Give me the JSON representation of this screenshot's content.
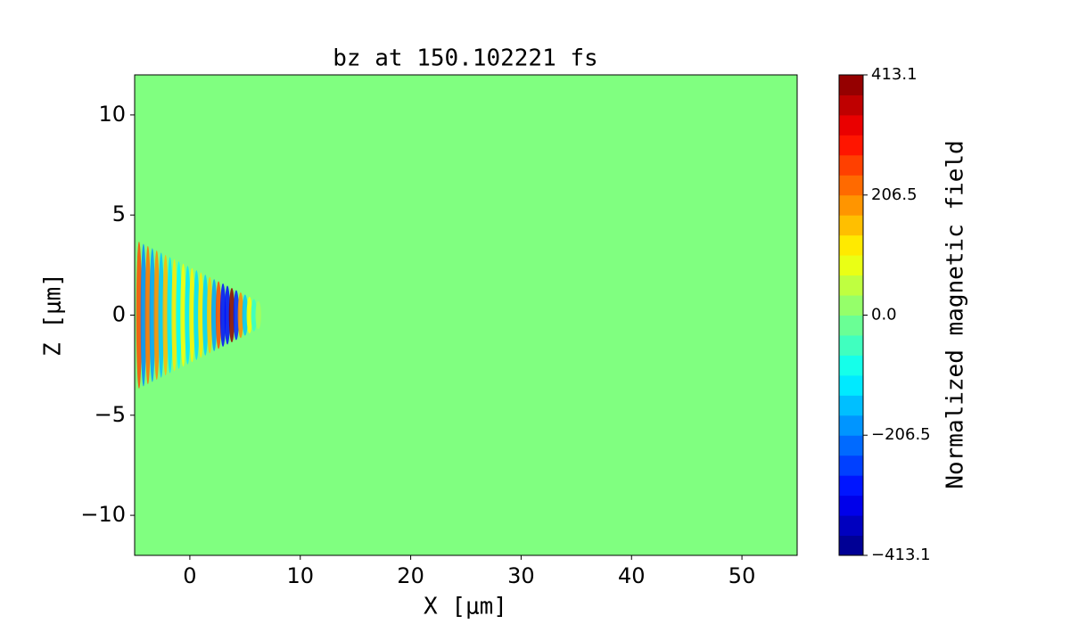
{
  "chart_data": {
    "type": "heatmap",
    "title": "bz at 150.102221 fs",
    "x_label": "X [μm]",
    "y_label": "Z [μm]",
    "colorbar_label": "Normalized magnetic field",
    "xlim": [
      -5,
      55
    ],
    "ylim": [
      -12,
      12
    ],
    "xticks": [
      0,
      10,
      20,
      30,
      40,
      50
    ],
    "yticks": [
      {
        "value": -10,
        "label": "−10"
      },
      {
        "value": -5,
        "label": "−5"
      },
      0,
      5,
      10
    ],
    "clim": [
      -413.1,
      413.1
    ],
    "cticks": [
      {
        "value": -413.1,
        "label": "−413.1"
      },
      {
        "value": -206.5,
        "label": "−206.5"
      },
      {
        "value": 0,
        "label": "0.0"
      },
      206.5,
      413.1
    ],
    "colormap": "jet",
    "background_value": 0,
    "x": [
      -4.6,
      -4.2,
      -3.8,
      -3.4,
      -3.0,
      -2.6,
      -2.2,
      -1.8,
      -1.4,
      -1.0,
      -0.6,
      -0.2,
      0.2,
      0.6,
      1.0,
      1.4,
      1.8,
      2.2,
      2.6,
      3.0,
      3.4,
      3.8,
      4.2,
      4.6,
      5.0,
      5.4,
      5.8,
      6.2
    ],
    "values": [
      250,
      -200,
      220,
      -180,
      200,
      -150,
      160,
      -120,
      120,
      -100,
      100,
      -120,
      110,
      -130,
      120,
      -140,
      150,
      -180,
      250,
      -300,
      -300,
      400,
      -280,
      200,
      -150,
      100,
      -60,
      30
    ]
  }
}
